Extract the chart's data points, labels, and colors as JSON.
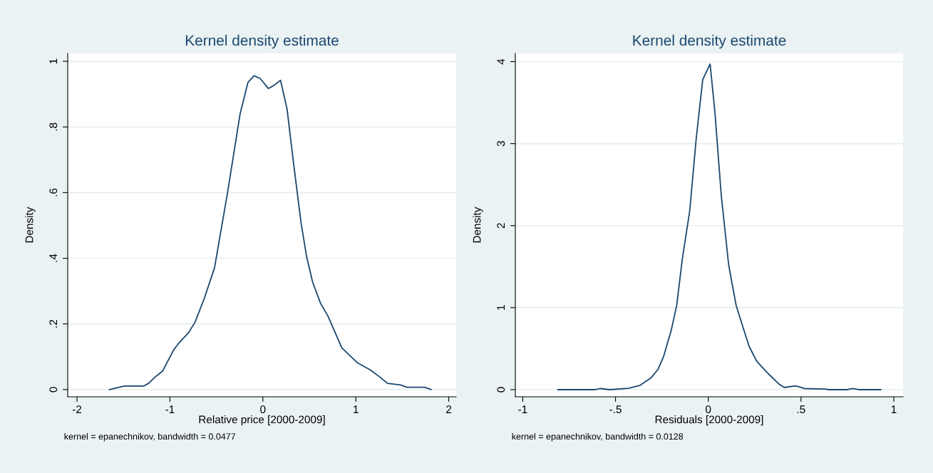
{
  "chart_data": [
    {
      "type": "line",
      "title": "Kernel density estimate",
      "xlabel": "Relative price [2000-2009]",
      "ylabel": "Density",
      "annotations": [
        "kernel = epanechnikov, bandwidth = 0.0477"
      ],
      "x": [
        -1.65,
        -1.49,
        -1.28,
        -1.23,
        -1.16,
        -1.08,
        -0.955,
        -0.9,
        -0.8,
        -0.73,
        -0.63,
        -0.52,
        -0.38,
        -0.245,
        -0.16,
        -0.095,
        -0.03,
        0.06,
        0.11,
        0.19,
        0.26,
        0.33,
        0.41,
        0.47,
        0.535,
        0.62,
        0.7,
        0.85,
        1.02,
        1.15,
        1.26,
        1.34,
        1.48,
        1.55,
        1.74,
        1.81
      ],
      "series": [
        {
          "color": "#1a476f",
          "values": [
            0,
            0.011,
            0.011,
            0.019,
            0.038,
            0.056,
            0.123,
            0.143,
            0.173,
            0.205,
            0.278,
            0.371,
            0.6,
            0.84,
            0.936,
            0.956,
            0.948,
            0.917,
            0.925,
            0.942,
            0.855,
            0.69,
            0.51,
            0.406,
            0.328,
            0.263,
            0.224,
            0.127,
            0.081,
            0.061,
            0.038,
            0.019,
            0.014,
            0.007,
            0.007,
            0
          ]
        }
      ],
      "xlim": [
        -2.1,
        2.08
      ],
      "xticks": [
        -2,
        -1,
        0,
        1,
        2
      ],
      "ylim": [
        -0.022,
        1.024
      ],
      "yticks": [
        0,
        {
          "value": 0.2,
          "label": ".2"
        },
        {
          "value": 0.4,
          "label": ".4"
        },
        {
          "value": 0.6,
          "label": ".6"
        },
        {
          "value": 0.8,
          "label": ".8"
        },
        1
      ],
      "grid": "y",
      "legend": false
    },
    {
      "type": "line",
      "title": "Kernel density estimate",
      "xlabel": "Residuals [2000-2009]",
      "ylabel": "Density",
      "annotations": [
        "kernel = epanechnikov, bandwidth = 0.0128"
      ],
      "x": [
        -0.81,
        -0.61,
        -0.58,
        -0.53,
        -0.43,
        -0.37,
        -0.31,
        -0.27,
        -0.24,
        -0.2,
        -0.17,
        -0.14,
        -0.1,
        -0.065,
        -0.03,
        0.01,
        0.036,
        0.07,
        0.11,
        0.15,
        0.19,
        0.22,
        0.26,
        0.3,
        0.33,
        0.38,
        0.41,
        0.47,
        0.52,
        0.63,
        0.65,
        0.75,
        0.78,
        0.81,
        0.93
      ],
      "series": [
        {
          "color": "#1a476f",
          "values": [
            0,
            0,
            0.013,
            0,
            0.016,
            0.05,
            0.14,
            0.25,
            0.41,
            0.72,
            1.03,
            1.59,
            2.18,
            3.06,
            3.78,
            3.97,
            3.38,
            2.37,
            1.52,
            1.03,
            0.74,
            0.53,
            0.35,
            0.25,
            0.18,
            0.07,
            0.026,
            0.046,
            0.013,
            0.007,
            0,
            0,
            0.013,
            0,
            0
          ]
        }
      ],
      "xlim": [
        -1.04,
        1.05
      ],
      "xticks": [
        -1,
        {
          "value": -0.5,
          "label": "-.5"
        },
        0,
        {
          "value": 0.5,
          "label": ".5"
        },
        1
      ],
      "ylim": [
        -0.087,
        4.1
      ],
      "yticks": [
        0,
        1,
        2,
        3,
        4
      ],
      "grid": "y",
      "legend": false
    }
  ]
}
